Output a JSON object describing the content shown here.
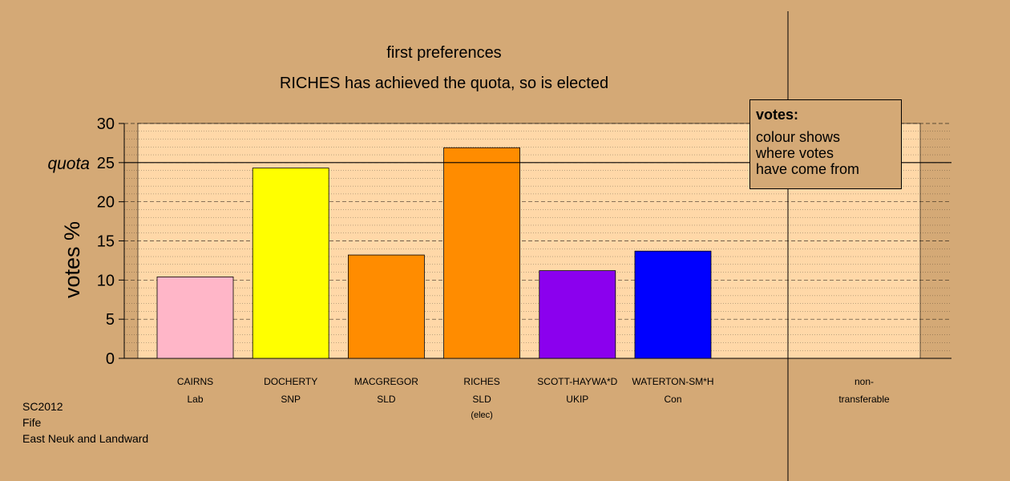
{
  "chart_data": {
    "type": "bar",
    "title": "first preferences",
    "subtitle": "RICHES has achieved the quota, so is elected",
    "ylabel": "votes %",
    "ylim": [
      0,
      30
    ],
    "yticks": [
      "0",
      "5",
      "10",
      "15",
      "20",
      "25",
      "30"
    ],
    "quota": 25,
    "quota_label": "quota",
    "categories": [
      {
        "name": "CAIRNS",
        "party": "Lab",
        "note": ""
      },
      {
        "name": "DOCHERTY",
        "party": "SNP",
        "note": ""
      },
      {
        "name": "MACGREGOR",
        "party": "SLD",
        "note": ""
      },
      {
        "name": "RICHES",
        "party": "SLD",
        "note": "(elec)"
      },
      {
        "name": "SCOTT-HAYWA*D",
        "party": "UKIP",
        "note": ""
      },
      {
        "name": "WATERTON-SM*H",
        "party": "Con",
        "note": ""
      }
    ],
    "values": [
      10.4,
      24.3,
      13.2,
      26.9,
      11.2,
      13.7
    ],
    "colors": [
      "#FFB6C8",
      "#FFFF00",
      "#FF8C00",
      "#FF8C00",
      "#8B00EE",
      "#0000FF"
    ],
    "nontransferable": {
      "line1": "non-",
      "line2": "transferable",
      "value": 0
    },
    "grid": true,
    "legend_position": "top-right"
  },
  "legend": {
    "title": "votes:",
    "lines": [
      "colour shows",
      "where votes",
      "have come from"
    ]
  },
  "footer": {
    "line1": "SC2012",
    "line2": "Fife",
    "line3": "East Neuk and Landward"
  }
}
